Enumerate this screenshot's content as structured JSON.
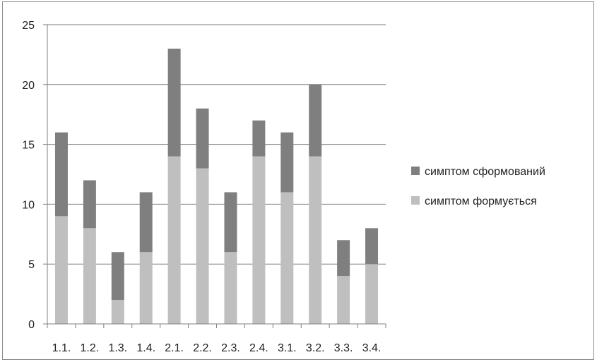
{
  "chart_data": {
    "type": "bar",
    "stacked": true,
    "categories": [
      "1.1.",
      "1.2.",
      "1.3.",
      "1.4.",
      "2.1.",
      "2.2.",
      "2.3.",
      "2.4.",
      "3.1.",
      "3.2.",
      "3.3.",
      "3.4."
    ],
    "series": [
      {
        "name": "симптом формується",
        "color": "#bfbfbf",
        "values": [
          9,
          8,
          2,
          6,
          14,
          13,
          6,
          14,
          11,
          14,
          4,
          5
        ]
      },
      {
        "name": "симптом сформований",
        "color": "#7f7f7f",
        "values": [
          7,
          4,
          4,
          5,
          9,
          5,
          5,
          3,
          5,
          6,
          3,
          3
        ]
      }
    ],
    "ylim": [
      0,
      25
    ],
    "yticks": [
      "0",
      "5",
      "10",
      "15",
      "20",
      "25"
    ],
    "grid": true,
    "legend": "right",
    "legend_order": [
      "симптом сформований",
      "симптом формується"
    ]
  }
}
